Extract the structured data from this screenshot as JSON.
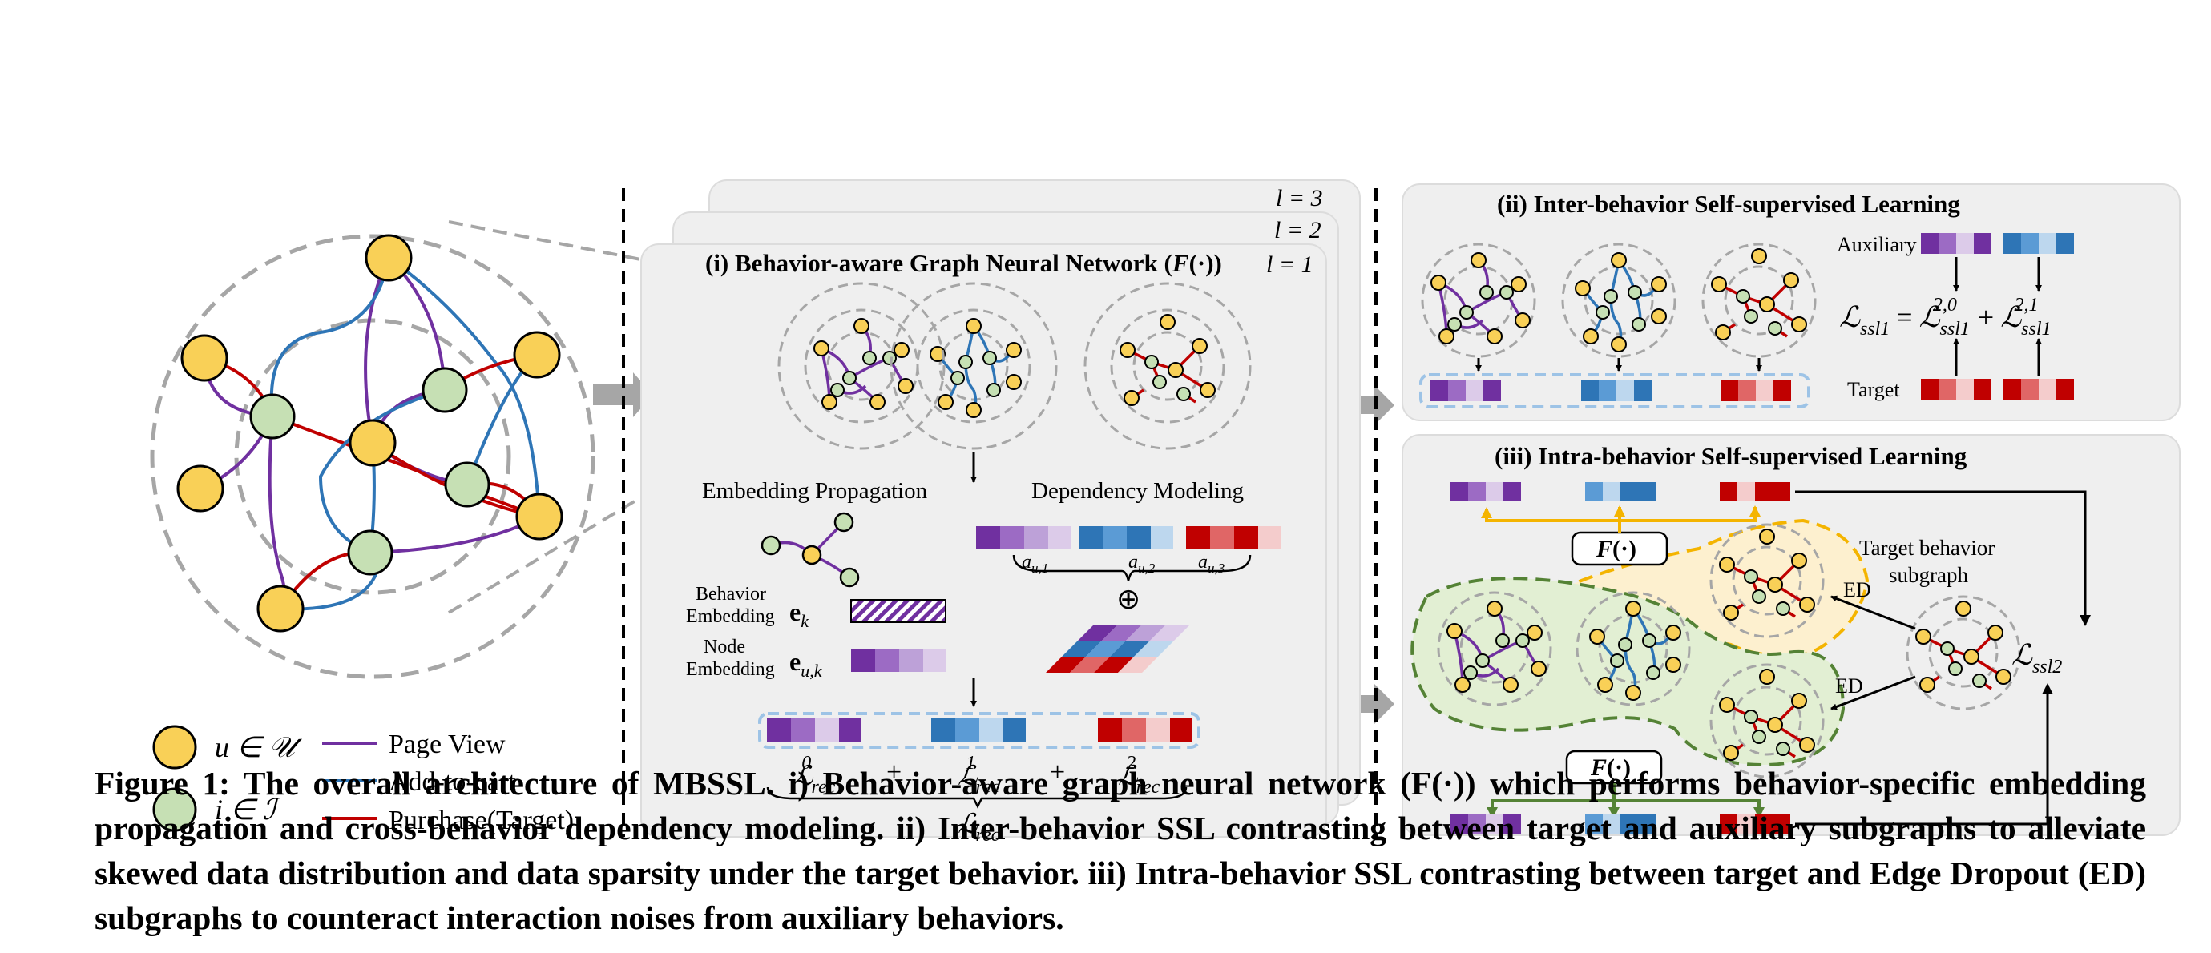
{
  "figure": {
    "colors": {
      "user_node": "#f9d057",
      "item_node": "#c6e0b4",
      "page_view": "#7030a0",
      "add_to_cart": "#2e75b6",
      "purchase": "#c00000",
      "panel_bg": "#efefef",
      "ssl_region_green": "#e2efd3",
      "ssl_region_yellow": "#fdf0cf",
      "arrow_gray": "#a6a6a6"
    },
    "legend": {
      "user": "u ∈ 𝒰",
      "item": "i ∈ ℐ",
      "page_view": "Page View",
      "add_to_cart": "Add-to-cart",
      "purchase": "Purchase(Target)"
    },
    "panel1": {
      "title_prefix": "(i) Behavior-aware Graph Neural Network (",
      "title_fn": "F",
      "title_suffix": "(·))",
      "layer_1": "l = 1",
      "layer_2": "l = 2",
      "layer_3": "l = 3",
      "embedding_propagation": "Embedding Propagation",
      "dependency_modeling": "Dependency Modeling",
      "behavior_embedding_1": "Behavior",
      "behavior_embedding_2": "Embedding",
      "node_embedding_1": "Node",
      "node_embedding_2": "Embedding",
      "e_k": "e",
      "e_k_sub": "k",
      "e_uk": "e",
      "e_uk_sub": "u,k",
      "a_u1": "a",
      "a_u1_sub": "u,1",
      "a_u2": "a",
      "a_u2_sub": "u,2",
      "a_u3": "a",
      "a_u3_sub": "u,3",
      "oplus": "⊕",
      "plus": "+",
      "L": "ℒ",
      "rec": "rec",
      "sup0": "0",
      "sup1": "1",
      "sup2": "2"
    },
    "panel2": {
      "title": "(ii) Inter-behavior Self-supervised Learning",
      "auxiliary": "Auxiliary",
      "target": "Target",
      "L": "ℒ",
      "ssl1": "ssl1",
      "sup20": "2,0",
      "sup21": "2,1",
      "eq": "=",
      "plus": "+"
    },
    "panel3": {
      "title": "(iii) Intra-behavior Self-supervised Learning",
      "F": "F",
      "F_suffix": "(·)",
      "target_subgraph_1": "Target behavior",
      "target_subgraph_2": "subgraph",
      "ed": "ED",
      "L": "ℒ",
      "ssl2": "ssl2"
    }
  },
  "caption": "Figure 1: The overall architecture of MBSSL. i) Behavior-aware graph neural network (F(·)) which performs behavior-specific embedding propagation and cross-behavior dependency modeling. ii) Inter-behavior SSL contrasting between target and auxiliary subgraphs to alleviate skewed data distribution and data sparsity under the target behavior. iii) Intra-behavior SSL contrasting between target and Edge Dropout (ED) subgraphs to counteract interaction noises from auxiliary behaviors."
}
